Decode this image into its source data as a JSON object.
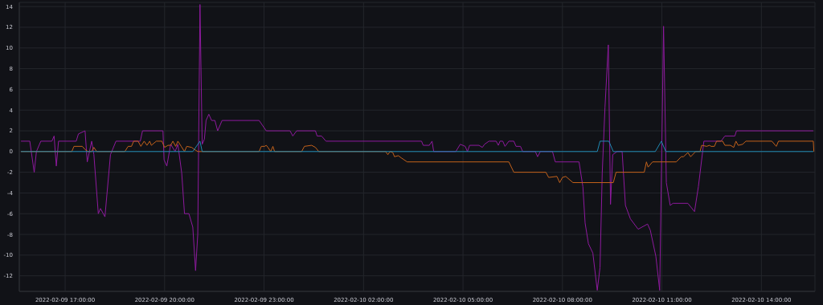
{
  "chart_data": {
    "type": "line",
    "xlim": [
      "2022-02-09T15:37",
      "2022-02-10T15:37"
    ],
    "xticks": [
      {
        "value": "2022-02-09T17:00",
        "label": "2022-02-09 17:00:00"
      },
      {
        "value": "2022-02-09T20:00",
        "label": "2022-02-09 20:00:00"
      },
      {
        "value": "2022-02-09T23:00",
        "label": "2022-02-09 23:00:00"
      },
      {
        "value": "2022-02-10T02:00",
        "label": "2022-02-10 02:00:00"
      },
      {
        "value": "2022-02-10T05:00",
        "label": "2022-02-10 05:00:00"
      },
      {
        "value": "2022-02-10T08:00",
        "label": "2022-02-10 08:00:00"
      },
      {
        "value": "2022-02-10T11:00",
        "label": "2022-02-10 11:00:00"
      },
      {
        "value": "2022-02-10T14:00",
        "label": "2022-02-10 14:00:00"
      }
    ],
    "ylim": [
      -13.5,
      14.4
    ],
    "yticks": [
      -12,
      -10,
      -8,
      -6,
      -4,
      -2,
      0,
      2,
      4,
      6,
      8,
      10,
      12,
      14
    ],
    "grid": true,
    "series": [
      {
        "color": "#8e1a9e",
        "x": [
          "2022-02-09T15:40",
          "2022-02-09T15:56",
          "2022-02-09T16:04",
          "2022-02-09T16:08",
          "2022-02-09T16:16",
          "2022-02-09T16:36",
          "2022-02-09T16:40",
          "2022-02-09T16:44",
          "2022-02-09T16:48",
          "2022-02-09T17:20",
          "2022-02-09T17:24",
          "2022-02-09T17:36",
          "2022-02-09T17:40",
          "2022-02-09T17:44",
          "2022-02-09T17:48",
          "2022-02-09T17:52",
          "2022-02-09T18:00",
          "2022-02-09T18:04",
          "2022-02-09T18:12",
          "2022-02-09T18:22",
          "2022-02-09T18:32",
          "2022-02-09T19:16",
          "2022-02-09T19:20",
          "2022-02-09T19:57",
          "2022-02-09T19:59",
          "2022-02-09T20:04",
          "2022-02-09T20:11",
          "2022-02-09T20:19",
          "2022-02-09T20:24",
          "2022-02-09T20:31",
          "2022-02-09T20:36",
          "2022-02-09T20:44",
          "2022-02-09T20:51",
          "2022-02-09T20:56",
          "2022-02-09T21:00",
          "2022-02-09T21:04",
          "2022-02-09T21:08",
          "2022-02-09T21:12",
          "2022-02-09T21:15",
          "2022-02-09T21:20",
          "2022-02-09T21:25",
          "2022-02-09T21:31",
          "2022-02-09T21:36",
          "2022-02-09T21:44",
          "2022-02-09T22:51",
          "2022-02-09T23:04",
          "2022-02-09T23:47",
          "2022-02-09T23:52",
          "2022-02-09T23:59",
          "2022-02-10T00:33",
          "2022-02-10T00:36",
          "2022-02-10T00:44",
          "2022-02-10T00:52",
          "2022-02-10T03:45",
          "2022-02-10T03:48",
          "2022-02-10T03:59",
          "2022-02-10T04:04",
          "2022-02-10T04:07",
          "2022-02-10T04:47",
          "2022-02-10T04:55",
          "2022-02-10T05:04",
          "2022-02-10T05:08",
          "2022-02-10T05:12",
          "2022-02-10T05:29",
          "2022-02-10T05:35",
          "2022-02-10T05:39",
          "2022-02-10T05:47",
          "2022-02-10T06:00",
          "2022-02-10T06:04",
          "2022-02-10T06:07",
          "2022-02-10T06:12",
          "2022-02-10T06:16",
          "2022-02-10T06:23",
          "2022-02-10T06:32",
          "2022-02-10T06:36",
          "2022-02-10T06:44",
          "2022-02-10T06:48",
          "2022-02-10T07:11",
          "2022-02-10T07:15",
          "2022-02-10T07:20",
          "2022-02-10T07:42",
          "2022-02-10T07:47",
          "2022-02-10T08:30",
          "2022-02-10T08:37",
          "2022-02-10T08:41",
          "2022-02-10T08:47",
          "2022-02-10T08:55",
          "2022-02-10T09:03",
          "2022-02-10T09:08",
          "2022-02-10T09:12",
          "2022-02-10T09:17",
          "2022-02-10T09:23",
          "2022-02-10T09:27",
          "2022-02-10T09:31",
          "2022-02-10T09:39",
          "2022-02-10T09:48",
          "2022-02-10T09:54",
          "2022-02-10T10:03",
          "2022-02-10T10:17",
          "2022-02-10T10:34",
          "2022-02-10T10:39",
          "2022-02-10T10:49",
          "2022-02-10T10:56",
          "2022-02-10T11:03",
          "2022-02-10T11:08",
          "2022-02-10T11:15",
          "2022-02-10T11:20",
          "2022-02-10T11:47",
          "2022-02-10T11:59",
          "2022-02-10T12:06",
          "2022-02-10T12:16",
          "2022-02-10T12:47",
          "2022-02-10T12:54",
          "2022-02-10T13:12",
          "2022-02-10T13:15",
          "2022-02-10T15:34"
        ],
        "values": [
          1,
          1,
          -2,
          0,
          1,
          1,
          1.5,
          -1.4,
          1,
          1,
          1.7,
          2,
          -1,
          0,
          1,
          -0.3,
          -6,
          -5.5,
          -6.3,
          -0.3,
          1,
          1,
          2,
          2,
          -0.8,
          -1.4,
          0.7,
          0,
          0.7,
          -2.1,
          -6,
          -6,
          -7.3,
          -11.5,
          -8,
          14.2,
          0.7,
          1.2,
          3,
          3.6,
          3,
          3,
          2,
          3,
          3,
          2,
          2,
          1.5,
          2,
          2,
          1.5,
          1.5,
          1,
          1,
          0.6,
          0.6,
          1,
          0,
          0,
          0.7,
          0.5,
          0,
          0.6,
          0.6,
          0.4,
          0.7,
          1,
          1,
          0.6,
          1,
          1,
          0.5,
          1,
          1,
          0.5,
          0.5,
          0,
          0,
          -0.5,
          0,
          0,
          -1,
          -1,
          -3.4,
          -6.9,
          -8.9,
          -9.8,
          -13.4,
          -11.2,
          -2.1,
          4.3,
          10.3,
          -5.1,
          -0.3,
          0,
          0,
          -5.2,
          -6.5,
          -7.5,
          -7,
          -7.6,
          -10.1,
          -13.4,
          12.1,
          -3,
          -5.2,
          -5,
          -5,
          -5.8,
          -3.4,
          1,
          1,
          1.5,
          1.5,
          2,
          2
        ]
      },
      {
        "color": "#c4621b",
        "x": [
          "2022-02-09T15:40",
          "2022-02-09T17:12",
          "2022-02-09T17:16",
          "2022-02-09T17:31",
          "2022-02-09T17:36",
          "2022-02-09T17:41",
          "2022-02-09T17:48",
          "2022-02-09T17:52",
          "2022-02-09T17:57",
          "2022-02-09T18:48",
          "2022-02-09T18:54",
          "2022-02-09T19:00",
          "2022-02-09T19:04",
          "2022-02-09T19:12",
          "2022-02-09T19:17",
          "2022-02-09T19:23",
          "2022-02-09T19:28",
          "2022-02-09T19:33",
          "2022-02-09T19:36",
          "2022-02-09T19:45",
          "2022-02-09T19:55",
          "2022-02-09T20:00",
          "2022-02-09T20:06",
          "2022-02-09T20:11",
          "2022-02-09T20:15",
          "2022-02-09T20:20",
          "2022-02-09T20:24",
          "2022-02-09T20:30",
          "2022-02-09T20:36",
          "2022-02-09T20:40",
          "2022-02-09T20:49",
          "2022-02-09T20:54",
          "2022-02-09T21:00",
          "2022-02-09T22:51",
          "2022-02-09T22:55",
          "2022-02-09T23:01",
          "2022-02-09T23:04",
          "2022-02-09T23:07",
          "2022-02-09T23:12",
          "2022-02-09T23:16",
          "2022-02-09T23:19",
          "2022-02-10T00:08",
          "2022-02-10T00:13",
          "2022-02-10T00:26",
          "2022-02-10T00:33",
          "2022-02-10T00:39",
          "2022-02-10T02:40",
          "2022-02-10T02:44",
          "2022-02-10T02:48",
          "2022-02-10T02:53",
          "2022-02-10T02:56",
          "2022-02-10T03:03",
          "2022-02-10T03:08",
          "2022-02-10T03:19",
          "2022-02-10T06:23",
          "2022-02-10T06:32",
          "2022-02-10T07:30",
          "2022-02-10T07:35",
          "2022-02-10T07:50",
          "2022-02-10T07:55",
          "2022-02-10T08:00",
          "2022-02-10T08:06",
          "2022-02-10T08:19",
          "2022-02-10T09:32",
          "2022-02-10T09:37",
          "2022-02-10T10:28",
          "2022-02-10T10:32",
          "2022-02-10T10:35",
          "2022-02-10T10:43",
          "2022-02-10T11:26",
          "2022-02-10T11:35",
          "2022-02-10T11:39",
          "2022-02-10T11:47",
          "2022-02-10T11:52",
          "2022-02-10T12:01",
          "2022-02-10T12:09",
          "2022-02-10T12:12",
          "2022-02-10T12:21",
          "2022-02-10T12:26",
          "2022-02-10T12:29",
          "2022-02-10T12:35",
          "2022-02-10T12:39",
          "2022-02-10T12:50",
          "2022-02-10T12:54",
          "2022-02-10T13:04",
          "2022-02-10T13:10",
          "2022-02-10T13:14",
          "2022-02-10T13:18",
          "2022-02-10T13:26",
          "2022-02-10T13:32",
          "2022-02-10T14:19",
          "2022-02-10T14:27",
          "2022-02-10T14:31",
          "2022-02-10T15:34",
          "2022-02-10T15:35"
        ],
        "values": [
          0,
          0,
          0.5,
          0.5,
          0.2,
          0,
          0,
          0.4,
          0,
          0,
          0.5,
          0.5,
          1,
          1,
          0.5,
          1,
          0.6,
          1,
          0.6,
          1,
          1,
          0.4,
          0.6,
          0.6,
          1,
          0.5,
          1,
          0.5,
          0,
          0.5,
          0.4,
          0.2,
          0,
          0,
          0.5,
          0.5,
          0.6,
          0.4,
          0,
          0.5,
          0,
          0,
          0.5,
          0.6,
          0.4,
          0,
          0,
          -0.3,
          0,
          -0.1,
          -0.5,
          -0.4,
          -0.6,
          -1,
          -1,
          -2,
          -2,
          -2.5,
          -2.4,
          -3,
          -2.5,
          -2.4,
          -3,
          -3,
          -2,
          -2,
          -1,
          -1.5,
          -1,
          -1,
          -0.5,
          -0.5,
          -0.1,
          -0.5,
          0,
          0,
          0.6,
          0.5,
          0.6,
          0.5,
          0.5,
          1,
          1,
          0.6,
          0.6,
          0.4,
          1,
          0.6,
          0.7,
          1,
          1,
          0.5,
          1,
          1,
          0
        ]
      },
      {
        "color": "#1f8ab4",
        "x": [
          "2022-02-09T15:40",
          "2022-02-09T20:51",
          "2022-02-09T21:04",
          "2022-02-09T21:08",
          "2022-02-10T09:03",
          "2022-02-10T09:08",
          "2022-02-10T09:24",
          "2022-02-10T09:32",
          "2022-02-10T10:48",
          "2022-02-10T10:59",
          "2022-02-10T11:07",
          "2022-02-10T15:34"
        ],
        "values": [
          0,
          0,
          1,
          0,
          0,
          1,
          1,
          0,
          0,
          1,
          0,
          0
        ]
      }
    ]
  }
}
